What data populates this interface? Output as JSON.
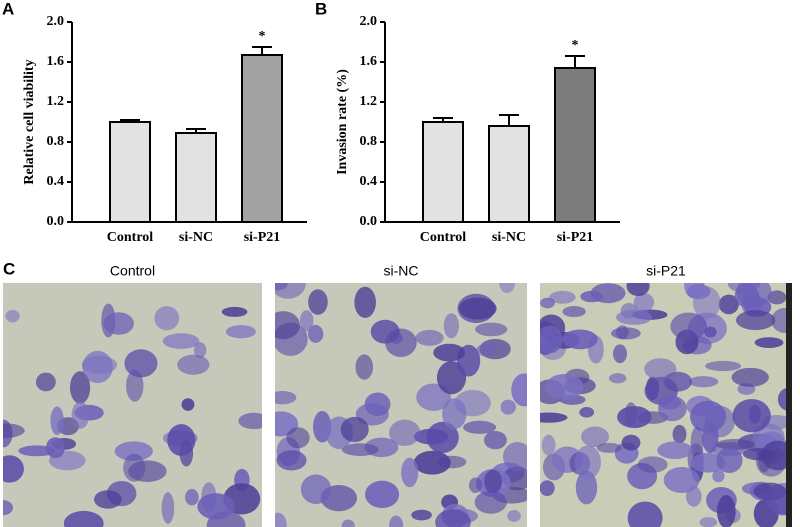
{
  "chart_data": [
    {
      "type": "bar",
      "panel_label": "A",
      "y_label": "Relative cell viability",
      "categories": [
        "Control",
        "si-NC",
        "si-P21"
      ],
      "values": [
        1.0,
        0.89,
        1.67
      ],
      "errors": [
        0.02,
        0.04,
        0.08
      ],
      "colors": [
        "#e2e2e2",
        "#e2e2e2",
        "#a2a2a2"
      ],
      "annotation": "*",
      "ylim": [
        0,
        2
      ],
      "yticks": [
        {
          "value": 0,
          "label": "0.0"
        },
        0.4,
        0.8,
        1.2,
        1.6,
        {
          "value": 2,
          "label": "2.0"
        }
      ]
    },
    {
      "type": "bar",
      "panel_label": "B",
      "y_label": "Invasion rate (%)",
      "categories": [
        "Control",
        "si-NC",
        "si-P21"
      ],
      "values": [
        1.0,
        0.96,
        1.54
      ],
      "errors": [
        0.04,
        0.11,
        0.12
      ],
      "colors": [
        "#e2e2e2",
        "#e2e2e2",
        "#7c7c7c"
      ],
      "annotation": "*",
      "ylim": [
        0,
        2
      ],
      "yticks": [
        {
          "value": 0,
          "label": "0.0"
        },
        0.4,
        0.8,
        1.2,
        1.6,
        {
          "value": 2,
          "label": "2.0"
        }
      ]
    }
  ],
  "panel_c": {
    "label": "C",
    "images": [
      {
        "title": "Control"
      },
      {
        "title": "si-NC"
      },
      {
        "title": "si-P21"
      }
    ]
  }
}
